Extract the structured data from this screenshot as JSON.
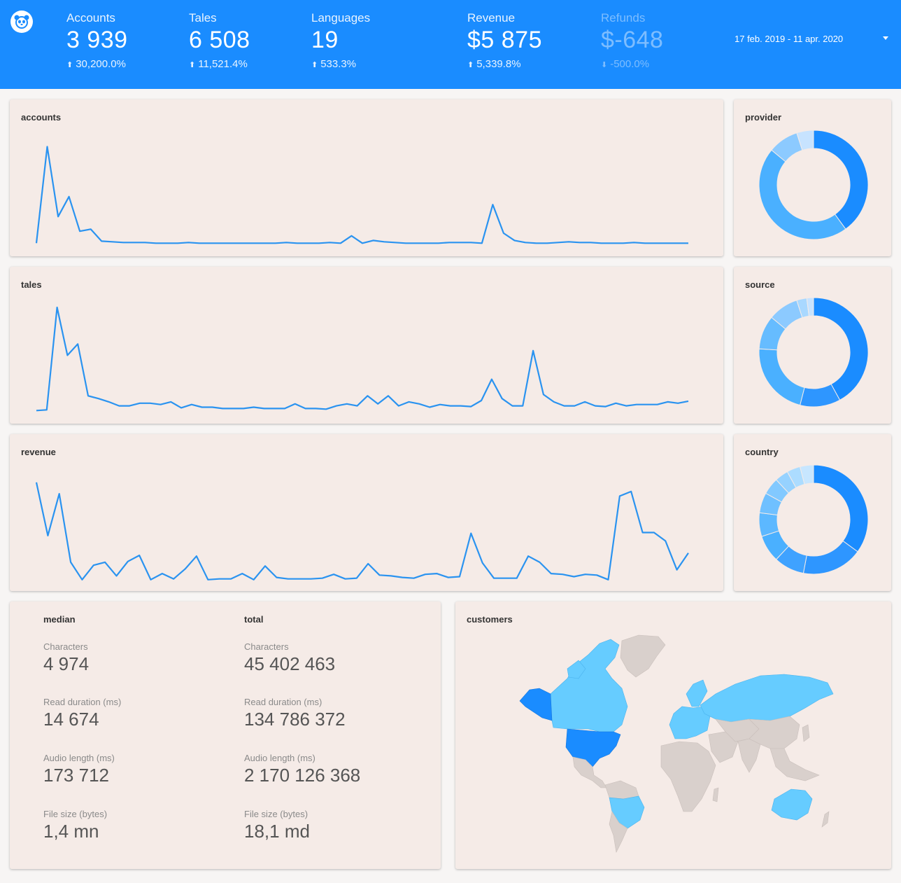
{
  "header": {
    "kpis": [
      {
        "label": "Accounts",
        "value": "3 939",
        "change": "30,200.0%",
        "direction": "up"
      },
      {
        "label": "Tales",
        "value": "6 508",
        "change": "11,521.4%",
        "direction": "up"
      },
      {
        "label": "Languages",
        "value": "19",
        "change": "533.3%",
        "direction": "up"
      },
      {
        "label": "Revenue",
        "value": "$5 875",
        "change": "5,339.8%",
        "direction": "up"
      },
      {
        "label": "Refunds",
        "value": "$-648",
        "change": "-500.0%",
        "direction": "down"
      }
    ],
    "date_range": "17 feb. 2019 - 11 apr. 2020",
    "colors": {
      "header_bg": "#1a8cff",
      "text": "#ffffff"
    }
  },
  "cards": {
    "accounts": {
      "title": "accounts"
    },
    "tales": {
      "title": "tales"
    },
    "revenue": {
      "title": "revenue"
    },
    "provider": {
      "title": "provider"
    },
    "source": {
      "title": "source"
    },
    "country": {
      "title": "country"
    },
    "customers": {
      "title": "customers"
    }
  },
  "stats": {
    "median": {
      "title": "median",
      "items": [
        {
          "label": "Characters",
          "value": "4 974"
        },
        {
          "label": "Read duration (ms)",
          "value": "14 674"
        },
        {
          "label": "Audio length (ms)",
          "value": "173 712"
        },
        {
          "label": "File size (bytes)",
          "value": "1,4 mn"
        }
      ]
    },
    "total": {
      "title": "total",
      "items": [
        {
          "label": "Characters",
          "value": "45 402 463"
        },
        {
          "label": "Read duration (ms)",
          "value": "134 786 372"
        },
        {
          "label": "Audio length (ms)",
          "value": "2 170 126 368"
        },
        {
          "label": "File size (bytes)",
          "value": "18,1 md"
        }
      ]
    }
  },
  "chart_data": [
    {
      "type": "line",
      "name": "accounts",
      "title": "accounts",
      "ylim": [
        0,
        160
      ],
      "values": [
        5,
        150,
        45,
        75,
        23,
        26,
        8,
        7,
        6,
        6,
        6,
        5,
        5,
        5,
        6,
        5,
        5,
        5,
        5,
        5,
        5,
        5,
        5,
        6,
        5,
        5,
        5,
        6,
        5,
        16,
        5,
        9,
        7,
        6,
        5,
        5,
        5,
        5,
        6,
        6,
        6,
        5,
        63,
        20,
        9,
        6,
        5,
        5,
        6,
        7,
        6,
        6,
        5,
        5,
        5,
        6,
        5,
        5,
        5,
        5,
        5
      ]
    },
    {
      "type": "line",
      "name": "tales",
      "title": "tales",
      "ylim": [
        0,
        160
      ],
      "values": [
        5,
        6,
        160,
        88,
        105,
        27,
        23,
        18,
        12,
        12,
        16,
        16,
        14,
        18,
        9,
        14,
        10,
        10,
        8,
        8,
        8,
        10,
        8,
        8,
        8,
        15,
        8,
        8,
        7,
        12,
        15,
        12,
        27,
        15,
        27,
        12,
        18,
        15,
        10,
        14,
        12,
        12,
        11,
        20,
        52,
        23,
        12,
        12,
        95,
        29,
        18,
        12,
        12,
        18,
        12,
        11,
        16,
        12,
        14,
        14,
        14,
        18,
        16,
        19
      ]
    },
    {
      "type": "line",
      "name": "revenue",
      "title": "revenue",
      "ylim": [
        0,
        140
      ],
      "values": [
        130,
        60,
        115,
        25,
        2,
        21,
        25,
        7,
        26,
        34,
        2,
        10,
        3,
        16,
        33,
        2,
        3,
        3,
        10,
        2,
        20,
        5,
        3,
        3,
        3,
        4,
        9,
        3,
        4,
        23,
        8,
        7,
        5,
        4,
        9,
        10,
        5,
        6,
        63,
        24,
        4,
        4,
        4,
        33,
        25,
        10,
        9,
        6,
        9,
        8,
        2,
        112,
        118,
        64,
        64,
        53,
        15,
        37
      ]
    },
    {
      "type": "pie",
      "name": "provider",
      "title": "provider",
      "values": [
        40,
        46,
        9,
        5
      ],
      "colors": [
        "#1a8cff",
        "#4ab0ff",
        "#8ccaff",
        "#c7e3ff"
      ]
    },
    {
      "type": "pie",
      "name": "source",
      "title": "source",
      "values": [
        42,
        12,
        22,
        10,
        9,
        3,
        2
      ],
      "colors": [
        "#1a8cff",
        "#2e96ff",
        "#4ab0ff",
        "#66bcff",
        "#8ccaff",
        "#a9d8ff",
        "#c7e3ff"
      ]
    },
    {
      "type": "pie",
      "name": "country",
      "title": "country",
      "values": [
        35,
        18,
        9,
        8,
        7,
        6,
        5,
        4,
        4,
        4
      ],
      "colors": [
        "#1a8cff",
        "#2e96ff",
        "#3fa2ff",
        "#4ab0ff",
        "#5cb8ff",
        "#6fc0ff",
        "#82c9ff",
        "#96d2ff",
        "#acdcff",
        "#c7e6ff"
      ]
    }
  ],
  "map": {
    "title": "customers",
    "legend_colors": {
      "none": "#d9d0cc",
      "some": "#66ccff",
      "most": "#1a8cff"
    }
  }
}
